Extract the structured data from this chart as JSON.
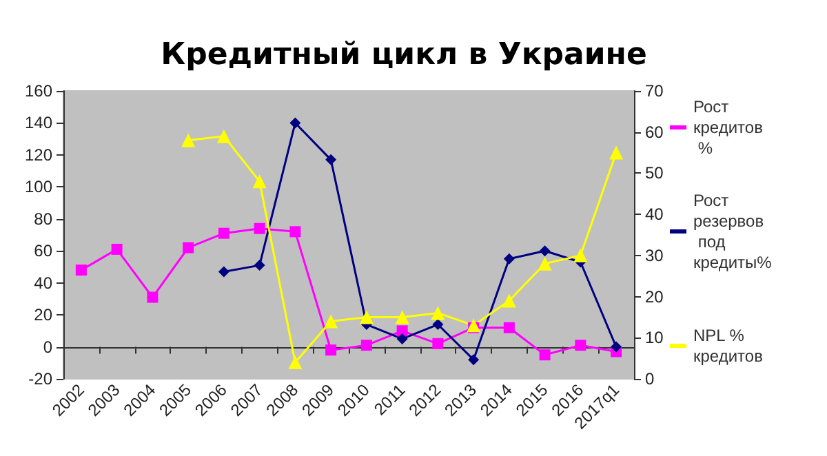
{
  "chart_data": {
    "type": "line",
    "title": "Кредитный цикл в Украине",
    "categories": [
      "2002",
      "2003",
      "2004",
      "2005",
      "2006",
      "2007",
      "2008",
      "2009",
      "2010",
      "2011",
      "2012",
      "2013",
      "2014",
      "2015",
      "2016",
      "2017q1"
    ],
    "series": [
      {
        "name": "Рост кредитов %",
        "color": "#ff00ff",
        "marker": "square",
        "values": [
          48,
          61,
          31,
          62,
          71,
          74,
          72,
          -2,
          1,
          10,
          2,
          12,
          12,
          -5,
          1,
          -3
        ]
      },
      {
        "name": "Рост резервов под кредиты%",
        "color": "#000080",
        "marker": "diamond",
        "values": [
          null,
          null,
          null,
          null,
          47,
          51,
          140,
          117,
          14,
          5,
          14,
          -8,
          55,
          60,
          53,
          0
        ]
      },
      {
        "name": "NPL % кредитов",
        "color": "#ffff00",
        "marker": "triangle",
        "axis": "y2",
        "values": [
          null,
          null,
          null,
          58,
          59,
          48,
          4,
          14,
          15,
          15,
          16,
          13,
          19,
          28,
          30,
          55
        ]
      }
    ],
    "ylim": [
      -20,
      160
    ],
    "yticks": [
      -20,
      0,
      20,
      40,
      60,
      80,
      100,
      120,
      140,
      160
    ],
    "y2lim": [
      0,
      70
    ],
    "y2ticks": [
      0,
      10,
      20,
      30,
      40,
      50,
      60,
      70
    ],
    "legend": "right",
    "line_style": "solid"
  }
}
